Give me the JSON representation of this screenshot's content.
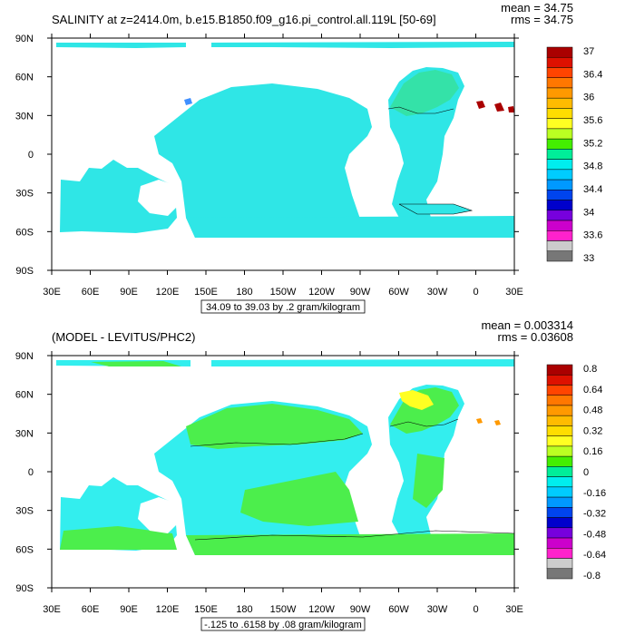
{
  "colors": {
    "ocean_high": "#2fe6e6",
    "ocean_mid": "#34e2a8",
    "ocean_green": "#4cee4c",
    "diff_cyan": "#33eeee",
    "diff_yellow": "#ffff22",
    "blue_patch": "#3f8fff",
    "red_patch": "#aa0000",
    "orange_patch": "#ff9900",
    "land": "#ffffff",
    "frame": "#000000"
  },
  "chart_data": [
    {
      "type": "heatmap",
      "title": "SALINITY at z=2414.0m, b.e15.B1850.f09_g16.pi_control.all.119L [50-69]",
      "stats": {
        "mean": "mean = 34.75",
        "rms": "rms = 34.75"
      },
      "x_ticks": [
        "30E",
        "60E",
        "90E",
        "120E",
        "150E",
        "180",
        "150W",
        "120W",
        "90W",
        "60W",
        "30W",
        "0",
        "30E"
      ],
      "y_ticks": [
        "90N",
        "60N",
        "30N",
        "0",
        "30S",
        "60S",
        "90S"
      ],
      "range_note": "34.09 to 39.03 by .2 gram/kilogram",
      "colorbar": {
        "labels": [
          "37",
          "36.4",
          "36",
          "35.6",
          "35.2",
          "34.8",
          "34.4",
          "34",
          "33.6",
          "33"
        ],
        "colors": [
          "#aa0000",
          "#dd1100",
          "#ff4400",
          "#ff7700",
          "#ff9900",
          "#ffbb00",
          "#ffdd00",
          "#ffff22",
          "#bbff22",
          "#44ee00",
          "#00ee99",
          "#00eeee",
          "#00ccff",
          "#0099ff",
          "#0044ee",
          "#0000cc",
          "#7700dd",
          "#cc00cc",
          "#ff22cc",
          "#cccccc",
          "#777777"
        ]
      }
    },
    {
      "type": "heatmap",
      "title": "(MODEL - LEVITUS/PHC2)",
      "stats": {
        "mean": "mean = 0.003314",
        "rms": "rms = 0.03608"
      },
      "x_ticks": [
        "30E",
        "60E",
        "90E",
        "120E",
        "150E",
        "180",
        "150W",
        "120W",
        "90W",
        "60W",
        "30W",
        "0",
        "30E"
      ],
      "y_ticks": [
        "90N",
        "60N",
        "30N",
        "0",
        "30S",
        "60S",
        "90S"
      ],
      "range_note": "-.125 to .6158 by .08 gram/kilogram",
      "colorbar": {
        "labels": [
          "0.8",
          "0.64",
          "0.48",
          "0.32",
          "0.16",
          "0",
          "-0.16",
          "-0.32",
          "-0.48",
          "-0.64",
          "-0.8"
        ],
        "colors": [
          "#aa0000",
          "#dd1100",
          "#ff4400",
          "#ff7700",
          "#ff9900",
          "#ffbb00",
          "#ffdd00",
          "#ffff22",
          "#bbff22",
          "#44ee00",
          "#00ee99",
          "#00eeee",
          "#00ccff",
          "#0099ff",
          "#0044ee",
          "#0000cc",
          "#7700dd",
          "#cc00cc",
          "#ff22cc",
          "#cccccc",
          "#777777"
        ]
      }
    }
  ]
}
